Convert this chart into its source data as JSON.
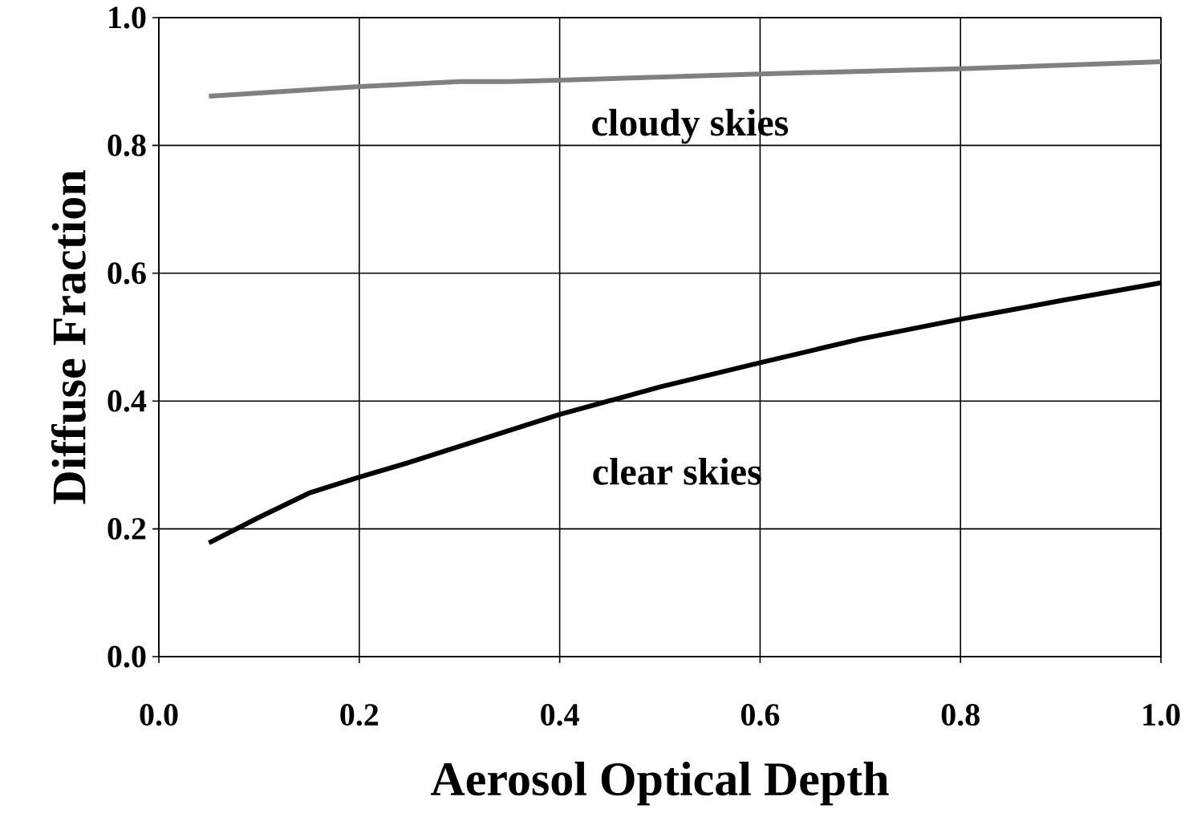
{
  "chart_data": {
    "type": "line",
    "xlabel": "Aerosol Optical Depth",
    "ylabel": "Diffuse Fraction",
    "xlim": [
      0,
      1
    ],
    "ylim": [
      0,
      1
    ],
    "xticks": [
      {
        "value": 0,
        "label": "0.0"
      },
      {
        "value": 0.2,
        "label": "0.2"
      },
      {
        "value": 0.4,
        "label": "0.4"
      },
      {
        "value": 0.6,
        "label": "0.6"
      },
      {
        "value": 0.8,
        "label": "0.8"
      },
      {
        "value": 1,
        "label": "1.0"
      }
    ],
    "yticks": [
      {
        "value": 0,
        "label": "0.0"
      },
      {
        "value": 0.2,
        "label": "0.2"
      },
      {
        "value": 0.4,
        "label": "0.4"
      },
      {
        "value": 0.6,
        "label": "0.6"
      },
      {
        "value": 0.8,
        "label": "0.8"
      },
      {
        "value": 1,
        "label": "1.0"
      }
    ],
    "grid": true,
    "series": [
      {
        "name": "cloudy skies",
        "color": "#808080",
        "x": [
          0.05,
          0.2,
          0.3,
          0.35,
          0.4,
          0.6,
          0.8,
          1.0
        ],
        "values": [
          0.877,
          0.892,
          0.9,
          0.9,
          0.902,
          0.912,
          0.92,
          0.931
        ]
      },
      {
        "name": "clear skies",
        "color": "#000000",
        "x": [
          0.05,
          0.1,
          0.15,
          0.2,
          0.25,
          0.3,
          0.4,
          0.5,
          0.6,
          0.7,
          0.8,
          0.9,
          1.0
        ],
        "values": [
          0.178,
          0.218,
          0.256,
          0.281,
          0.304,
          0.329,
          0.379,
          0.422,
          0.46,
          0.497,
          0.528,
          0.557,
          0.585
        ]
      }
    ]
  }
}
